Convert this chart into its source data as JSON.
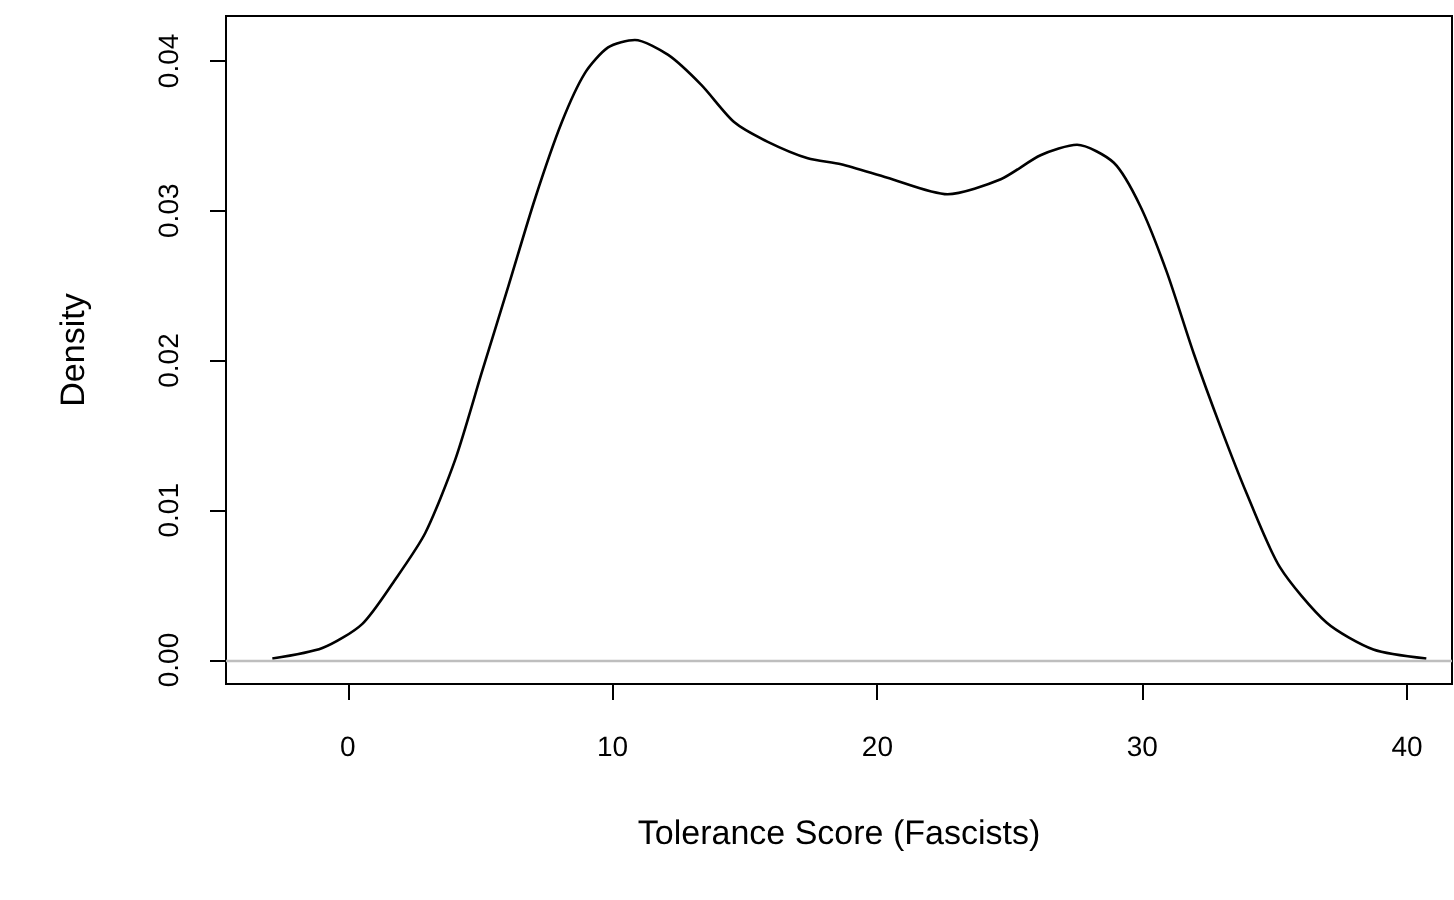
{
  "chart_data": {
    "type": "line",
    "xlabel": "Tolerance Score (Fascists)",
    "ylabel": "Density",
    "xlim": [
      -4.6,
      41.7
    ],
    "xticks": [
      0,
      10,
      20,
      30,
      40
    ],
    "ylim": [
      -0.0016,
      0.043
    ],
    "yticks": [
      {
        "value": 0,
        "label": "0.00"
      },
      {
        "value": 0.01,
        "label": "0.01"
      },
      {
        "value": 0.02,
        "label": "0.02"
      },
      {
        "value": 0.03,
        "label": "0.03"
      },
      {
        "value": 0.04,
        "label": "0.04"
      }
    ],
    "grid": false,
    "marker": "none",
    "line_style": "solid",
    "ref_lines": [
      {
        "axis": "y",
        "value": 0,
        "color": "#bebebe"
      }
    ],
    "series": [
      {
        "color": "#000000",
        "x": [
          -2.85,
          -0.96,
          0.54,
          1.8,
          2.93,
          4.06,
          5.06,
          6.07,
          7.07,
          8.08,
          8.96,
          9.83,
          10.84,
          12.1,
          13.35,
          14.6,
          15.86,
          17.37,
          18.63,
          20.38,
          22.65,
          24.66,
          26.16,
          27.54,
          28.93,
          29.93,
          30.93,
          31.94,
          32.95,
          33.95,
          35.2,
          36.96,
          38.73,
          40.73
        ],
        "values": [
          0.0001,
          0.0008,
          0.0024,
          0.0054,
          0.0085,
          0.0134,
          0.0192,
          0.025,
          0.0308,
          0.0359,
          0.0392,
          0.0409,
          0.0414,
          0.0404,
          0.0384,
          0.0359,
          0.0346,
          0.0335,
          0.0331,
          0.0322,
          0.0311,
          0.0321,
          0.0337,
          0.0344,
          0.0332,
          0.0303,
          0.0259,
          0.0205,
          0.0156,
          0.0111,
          0.0062,
          0.0025,
          0.0007,
          0.0001
        ]
      }
    ]
  }
}
